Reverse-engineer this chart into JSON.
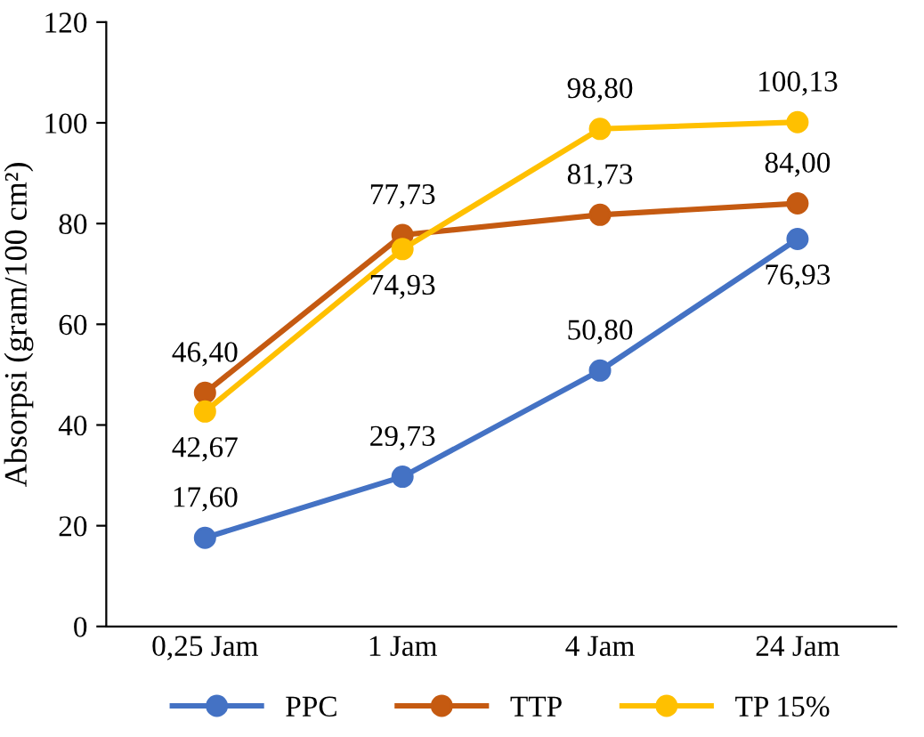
{
  "chart_data": {
    "type": "line",
    "ylabel": "Absorpsi (gram/100 cm²)",
    "categories": [
      "0,25 Jam",
      "1 Jam",
      "4 Jam",
      "24 Jam"
    ],
    "series": [
      {
        "name": "PPC",
        "color": "#4472c4",
        "values": [
          17.6,
          29.73,
          50.8,
          76.93
        ],
        "value_labels": [
          "17,60",
          "29,73",
          "50,80",
          "76,93"
        ]
      },
      {
        "name": "TTP",
        "color": "#c55a11",
        "values": [
          46.4,
          77.73,
          81.73,
          84.0
        ],
        "value_labels": [
          "46,40",
          "77,73",
          "81,73",
          "84,00"
        ]
      },
      {
        "name": "TP 15%",
        "color": "#ffc000",
        "values": [
          42.67,
          74.93,
          98.8,
          100.13
        ],
        "value_labels": [
          "42,67",
          "74,93",
          "98,80",
          "100,13"
        ]
      }
    ],
    "ylim": [
      0,
      120
    ],
    "yticks": [
      0,
      20,
      40,
      60,
      80,
      100,
      120
    ],
    "grid": false,
    "legend": "bottom",
    "marker": "circle",
    "line_style": "solid"
  }
}
